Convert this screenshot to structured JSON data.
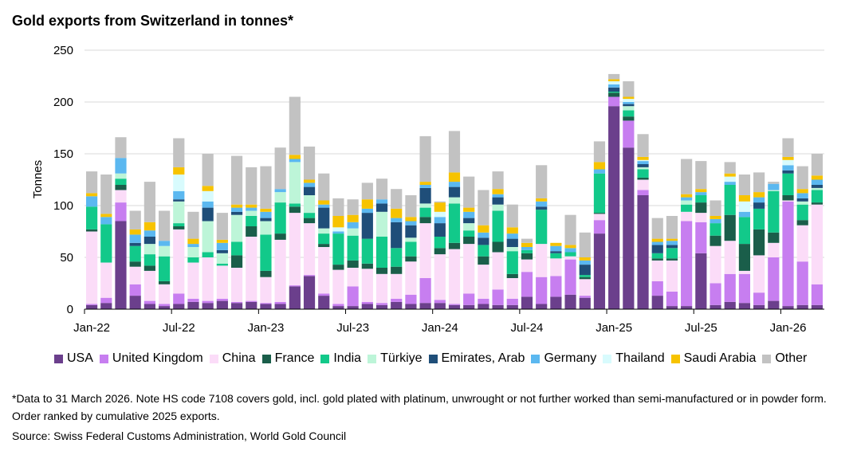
{
  "title": "Gold exports from Switzerland in tonnes*",
  "note": "*Data to 31 March 2026. Note HS code 7108 covers gold, incl. gold plated with platinum, unwrought or not further worked than semi-manufactured or in powder form. Order ranked by cumulative 2025 exports.",
  "source": "Source: Swiss Federal Customs Administration, World Gold Council",
  "chart_data": {
    "type": "bar",
    "stacked": true,
    "title": "Gold exports from Switzerland in tonnes*",
    "ylabel": "Tonnes",
    "xlabel": "",
    "ylim": [
      0,
      250
    ],
    "yticks": [
      0,
      50,
      100,
      150,
      200,
      250
    ],
    "grid": true,
    "legend_position": "bottom",
    "x_tick_labels": [
      {
        "label": "Jan-22",
        "index": 0
      },
      {
        "label": "Jul-22",
        "index": 6
      },
      {
        "label": "Jan-23",
        "index": 12
      },
      {
        "label": "Jul-23",
        "index": 18
      },
      {
        "label": "Jan-24",
        "index": 24
      },
      {
        "label": "Jul-24",
        "index": 30
      },
      {
        "label": "Jan-25",
        "index": 36
      },
      {
        "label": "Jul-25",
        "index": 42
      },
      {
        "label": "Jan-26",
        "index": 48
      }
    ],
    "categories": [
      "Jan-22",
      "Feb-22",
      "Mar-22",
      "Apr-22",
      "May-22",
      "Jun-22",
      "Jul-22",
      "Aug-22",
      "Sep-22",
      "Oct-22",
      "Nov-22",
      "Dec-22",
      "Jan-23",
      "Feb-23",
      "Mar-23",
      "Apr-23",
      "May-23",
      "Jun-23",
      "Jul-23",
      "Aug-23",
      "Sep-23",
      "Oct-23",
      "Nov-23",
      "Dec-23",
      "Jan-24",
      "Feb-24",
      "Mar-24",
      "Apr-24",
      "May-24",
      "Jun-24",
      "Jul-24",
      "Aug-24",
      "Sep-24",
      "Oct-24",
      "Nov-24",
      "Dec-24",
      "Jan-25",
      "Feb-25",
      "Mar-25",
      "Apr-25",
      "May-25",
      "Jun-25",
      "Jul-25",
      "Aug-25",
      "Sep-25",
      "Oct-25",
      "Nov-25",
      "Dec-25",
      "Jan-26",
      "Feb-26",
      "Mar-26"
    ],
    "series": [
      {
        "name": "USA",
        "color": "#6b3f8c",
        "values": [
          4,
          6,
          85,
          13,
          5,
          3,
          5,
          7,
          6,
          8,
          6,
          7,
          5,
          5,
          22,
          32,
          13,
          3,
          3,
          5,
          4,
          7,
          5,
          6,
          6,
          4,
          4,
          5,
          4,
          4,
          12,
          5,
          12,
          14,
          11,
          73,
          196,
          156,
          110,
          13,
          3,
          3,
          54,
          4,
          7,
          6,
          4,
          8,
          3,
          4,
          4
        ]
      },
      {
        "name": "United Kingdom",
        "color": "#c77ef0",
        "values": [
          1,
          5,
          18,
          11,
          3,
          2,
          10,
          3,
          2,
          2,
          1,
          1,
          1,
          2,
          1,
          1,
          2,
          2,
          19,
          2,
          2,
          3,
          9,
          24,
          3,
          1,
          11,
          5,
          15,
          6,
          24,
          26,
          20,
          34,
          2,
          13,
          9,
          26,
          5,
          14,
          14,
          82,
          30,
          21,
          27,
          28,
          12,
          42,
          101,
          42,
          20
        ]
      },
      {
        "name": "China",
        "color": "#fbdcf8",
        "values": [
          70,
          34,
          12,
          17,
          29,
          19,
          62,
          35,
          42,
          32,
          33,
          62,
          25,
          60,
          70,
          50,
          45,
          33,
          18,
          32,
          28,
          24,
          32,
          53,
          44,
          53,
          48,
          33,
          36,
          20,
          12,
          32,
          17,
          3,
          16,
          6,
          0,
          0,
          10,
          20,
          30,
          9,
          9,
          36,
          32,
          3,
          36,
          14,
          1,
          35,
          77
        ]
      },
      {
        "name": "France",
        "color": "#1a5e4a",
        "values": [
          2,
          0,
          5,
          5,
          5,
          3,
          3,
          0,
          0,
          0,
          12,
          10,
          6,
          6,
          6,
          5,
          3,
          5,
          7,
          5,
          6,
          7,
          5,
          6,
          6,
          6,
          7,
          8,
          10,
          4,
          6,
          0,
          0,
          0,
          2,
          1,
          4,
          4,
          2,
          2,
          2,
          0,
          10,
          10,
          25,
          26,
          25,
          10,
          5,
          5,
          2
        ]
      },
      {
        "name": "India",
        "color": "#12c98a",
        "values": [
          22,
          37,
          6,
          15,
          11,
          24,
          3,
          5,
          5,
          2,
          13,
          10,
          35,
          30,
          3,
          5,
          10,
          30,
          24,
          24,
          30,
          18,
          14,
          9,
          11,
          38,
          6,
          11,
          30,
          22,
          3,
          33,
          5,
          4,
          2,
          38,
          1,
          6,
          8,
          5,
          10,
          7,
          7,
          12,
          29,
          26,
          20,
          40,
          21,
          15,
          12
        ]
      },
      {
        "name": "Türkiye",
        "color": "#bdf5d8",
        "values": [
          0,
          0,
          5,
          0,
          10,
          10,
          21,
          10,
          30,
          10,
          26,
          5,
          13,
          10,
          40,
          17,
          5,
          0,
          7,
          0,
          24,
          0,
          4,
          4,
          0,
          6,
          7,
          0,
          6,
          4,
          0,
          0,
          0,
          0,
          0,
          0,
          0,
          4,
          2,
          0,
          0,
          4,
          0,
          0,
          0,
          0,
          0,
          1,
          0,
          3,
          2
        ]
      },
      {
        "name": "Emirates, Arab",
        "color": "#1f4e79",
        "values": [
          0,
          0,
          0,
          3,
          7,
          0,
          2,
          0,
          13,
          3,
          3,
          0,
          3,
          0,
          0,
          8,
          20,
          0,
          0,
          25,
          8,
          25,
          12,
          15,
          13,
          10,
          5,
          7,
          7,
          8,
          0,
          3,
          2,
          0,
          10,
          0,
          4,
          2,
          3,
          8,
          3,
          0,
          0,
          0,
          0,
          0,
          6,
          0,
          3,
          3,
          3
        ]
      },
      {
        "name": "Germany",
        "color": "#5bb8f0",
        "values": [
          10,
          7,
          15,
          8,
          6,
          5,
          8,
          3,
          6,
          7,
          4,
          3,
          6,
          3,
          3,
          4,
          3,
          2,
          6,
          4,
          4,
          4,
          4,
          3,
          6,
          5,
          6,
          5,
          3,
          5,
          3,
          5,
          5,
          4,
          4,
          4,
          3,
          2,
          3,
          3,
          4,
          3,
          3,
          4,
          3,
          5,
          5,
          6,
          5,
          5,
          5
        ]
      },
      {
        "name": "Thailand",
        "color": "#d8fbfd",
        "values": [
          0,
          0,
          0,
          0,
          0,
          0,
          16,
          0,
          10,
          0,
          0,
          0,
          0,
          0,
          0,
          0,
          0,
          4,
          0,
          0,
          0,
          0,
          0,
          0,
          5,
          0,
          0,
          0,
          0,
          0,
          0,
          0,
          0,
          0,
          0,
          0,
          3,
          3,
          1,
          0,
          0,
          0,
          0,
          0,
          5,
          10,
          0,
          0,
          5,
          0,
          0
        ]
      },
      {
        "name": "Saudi Arabia",
        "color": "#f7c300",
        "values": [
          3,
          3,
          0,
          5,
          8,
          0,
          7,
          5,
          5,
          3,
          3,
          3,
          3,
          0,
          4,
          3,
          4,
          11,
          7,
          9,
          0,
          9,
          4,
          3,
          9,
          9,
          4,
          7,
          5,
          6,
          4,
          3,
          3,
          3,
          3,
          7,
          2,
          2,
          3,
          3,
          2,
          3,
          3,
          3,
          3,
          6,
          5,
          0,
          3,
          4,
          4
        ]
      },
      {
        "name": "Other",
        "color": "#c2c2c2",
        "values": [
          21,
          38,
          20,
          18,
          39,
          29,
          28,
          26,
          31,
          26,
          47,
          36,
          41,
          40,
          56,
          32,
          26,
          17,
          15,
          16,
          20,
          19,
          21,
          44,
          1,
          40,
          30,
          34,
          17,
          22,
          4,
          32,
          0,
          29,
          24,
          20,
          5,
          15,
          22,
          20,
          22,
          34,
          27,
          15,
          11,
          20,
          19,
          2,
          18,
          22,
          21
        ]
      }
    ]
  }
}
